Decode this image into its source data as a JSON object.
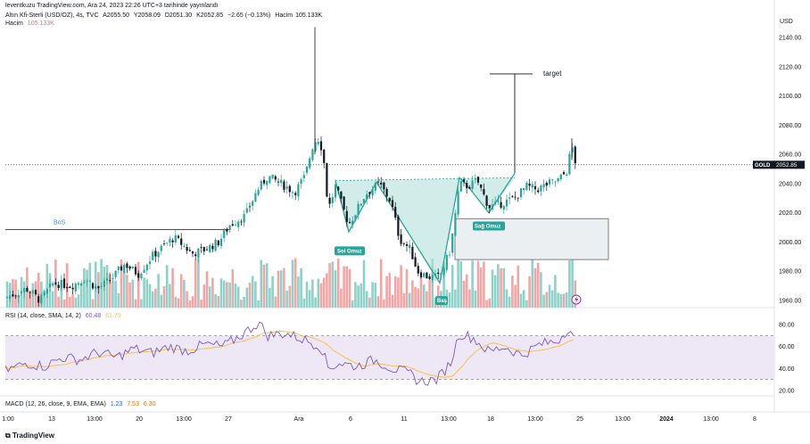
{
  "header": {
    "line1": "leventkuzu TradingView.com, Ara 24, 2023 22:26 UTC+3 tarihinde yayınlandı",
    "symbol_line": "Altın Kfi-Sterli (USD/OZ), 4s, TVC",
    "open": "A2055.50",
    "high": "Y2058.09",
    "low": "D2051.30",
    "close": "K2052.85",
    "change": "−2.65 (−0.13%)",
    "volume_label": "Hacim",
    "volume_value": "105.133K",
    "volume_legend_label": "Hacim",
    "volume_legend_value": "105.133K"
  },
  "price_axis": {
    "currency": "USD",
    "ticks": [
      "2140.00",
      "2120.00",
      "2100.00",
      "2080.00",
      "2060.00",
      "2040.00",
      "2020.00",
      "2000.00",
      "1980.00",
      "1960.00"
    ],
    "symbol_tag": "GOLD",
    "last_price": "2052.85"
  },
  "rsi_legend": {
    "label": "RSI (14, close, SMA, 14, 2)",
    "v1": "60.48",
    "v2": "61.79"
  },
  "rsi_axis": {
    "ticks": [
      "80.00",
      "60.00",
      "40.00",
      "20.00"
    ]
  },
  "macd_legend": {
    "label": "MACD (12, 26, close, 9, EMA, EMA)",
    "v1": "1.23",
    "v2": "7.53",
    "v3": "6.30"
  },
  "time_axis": [
    "1:00",
    "13",
    "13:00",
    "20",
    "13:00",
    "27",
    "Ara",
    "6",
    "11",
    "13:00",
    "18",
    "13:00",
    "25",
    "13:00",
    "2024",
    "13:00",
    "8"
  ],
  "annotations": {
    "bos": "BoS",
    "target": "target",
    "sol_omuz": "Sol Omuz",
    "sag_omuz": "Sağ Omuz",
    "bas": "Baş"
  },
  "footer": {
    "brand": "TradingView"
  },
  "colors": {
    "up": "#26a69a",
    "down": "#131722",
    "vol_up": "#8fd1c9",
    "vol_down": "#f2a5a5",
    "rsi_line": "#7e57c2",
    "rsi_ma": "#f5c542",
    "rsi_band": "#ede7f6",
    "pattern_fill": "#b2dfdb",
    "zone_fill": "#eceff1"
  },
  "chart_data": {
    "type": "candlestick",
    "price_range": [
      1955,
      2150
    ],
    "last_price": 2052.85,
    "bos_level": 2008.5,
    "target_level": 2115,
    "pattern": "inverse head and shoulders",
    "neckline": [
      2042,
      2044
    ],
    "left_shoulder_low": 2007,
    "head_low": 1972,
    "right_shoulder_low": 2020,
    "zone": [
      1988,
      2016
    ],
    "spike_high": 2147,
    "rsi_range": [
      15,
      90
    ],
    "rsi_bands": [
      70,
      30
    ]
  }
}
